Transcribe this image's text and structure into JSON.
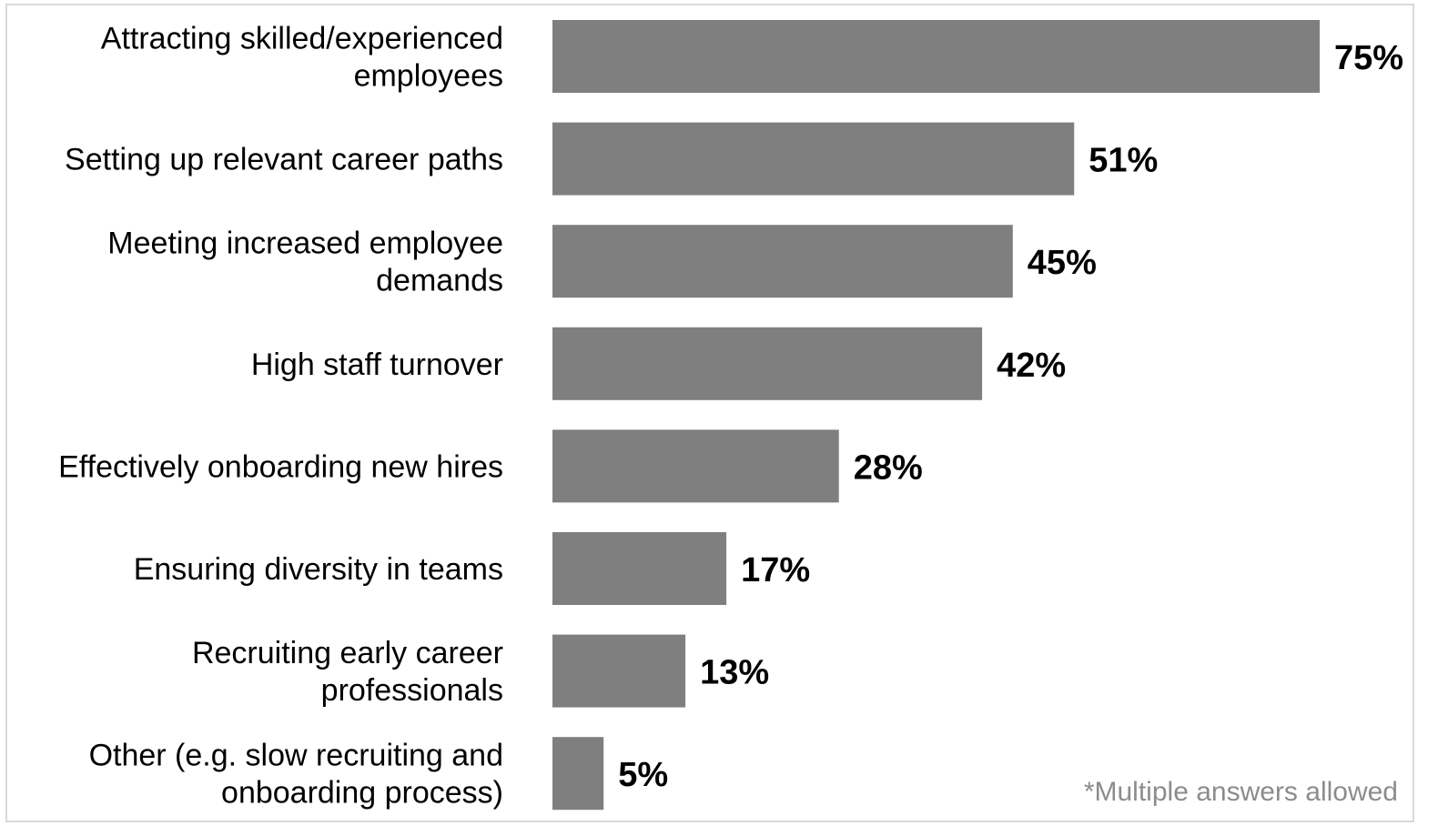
{
  "chart_data": {
    "type": "bar",
    "orientation": "horizontal",
    "categories": [
      [
        "Attracting skilled/experienced",
        "employees"
      ],
      [
        "Setting up relevant career paths"
      ],
      [
        "Meeting increased employee",
        "demands"
      ],
      [
        "High staff turnover"
      ],
      [
        "Effectively onboarding new hires"
      ],
      [
        "Ensuring diversity in teams"
      ],
      [
        "Recruiting early career",
        "professionals"
      ],
      [
        "Other (e.g. slow recruiting and",
        "onboarding process)"
      ]
    ],
    "values": [
      75,
      51,
      45,
      42,
      28,
      17,
      13,
      5
    ],
    "value_labels": [
      "75%",
      "51%",
      "45%",
      "42%",
      "28%",
      "17%",
      "13%",
      "5%"
    ],
    "unit": "%",
    "xlim": [
      0,
      75
    ],
    "grid": false,
    "legend": "none",
    "bar_color": "#7f7f7f"
  },
  "footnote": "*Multiple answers allowed"
}
